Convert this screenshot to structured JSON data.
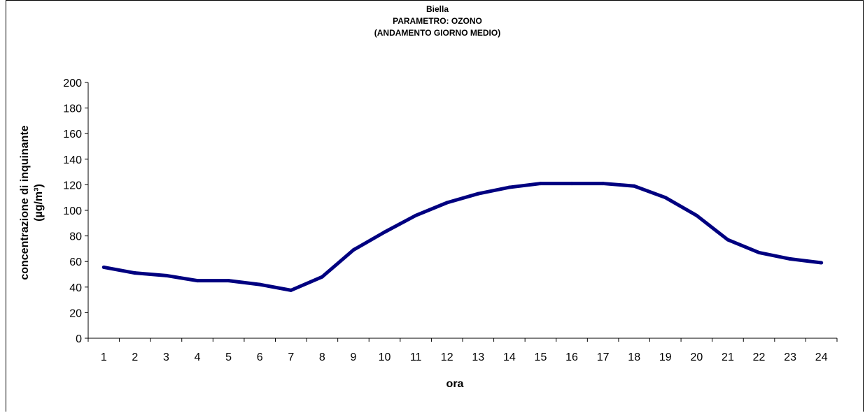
{
  "chart_data": {
    "type": "line",
    "title_lines": [
      "Biella",
      "PARAMETRO: OZONO",
      "(ANDAMENTO GIORNO MEDIO)"
    ],
    "xlabel": "ora",
    "ylabel_lines": [
      "concentrazione di inquinante",
      "(µg/m³)"
    ],
    "categories": [
      "1",
      "2",
      "3",
      "4",
      "5",
      "6",
      "7",
      "8",
      "9",
      "10",
      "11",
      "12",
      "13",
      "14",
      "15",
      "16",
      "17",
      "18",
      "19",
      "20",
      "21",
      "22",
      "23",
      "24"
    ],
    "series": [
      {
        "values": [
          55.5,
          51,
          49,
          45,
          45,
          42,
          37.5,
          48,
          69,
          83,
          96,
          106,
          113,
          118,
          121,
          121,
          121,
          119,
          110,
          96,
          77,
          67,
          62,
          59
        ]
      }
    ],
    "ylim": [
      0,
      200
    ],
    "yticks": [
      "0",
      "20",
      "40",
      "60",
      "80",
      "100",
      "120",
      "140",
      "160",
      "180",
      "200"
    ],
    "grid": false,
    "legend": "none",
    "colors": {
      "line": "#000080"
    }
  }
}
